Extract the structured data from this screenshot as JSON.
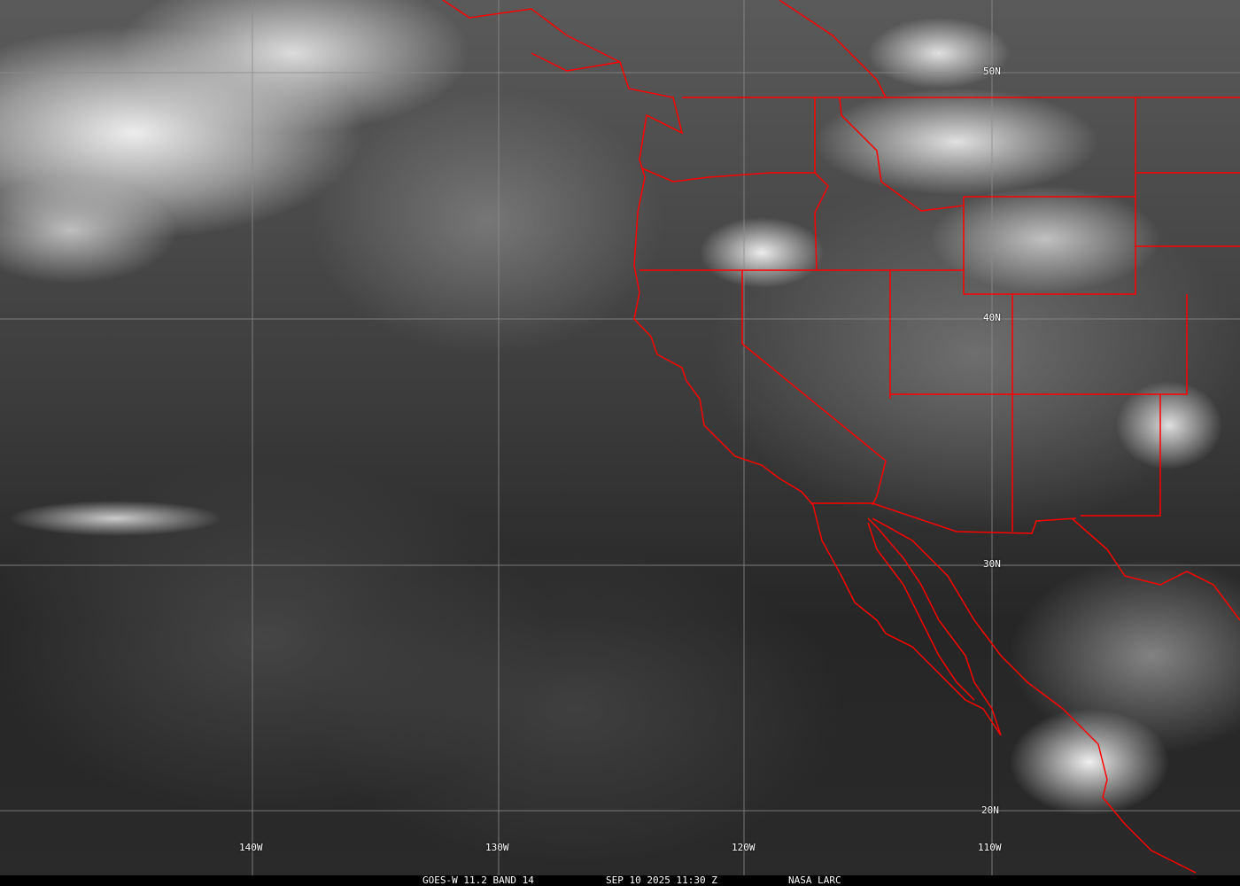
{
  "grid": {
    "longitude_labels": [
      "140W",
      "130W",
      "120W",
      "110W"
    ],
    "latitude_labels": [
      "50N",
      "40N",
      "30N",
      "20N"
    ],
    "grid_color": "#8c8c8c"
  },
  "boundary_color": "#ff0000",
  "caption": {
    "product": "GOES-W 11.2 BAND 14",
    "datetime": "SEP 10 2025 11:30 Z",
    "source": "NASA LARC"
  }
}
